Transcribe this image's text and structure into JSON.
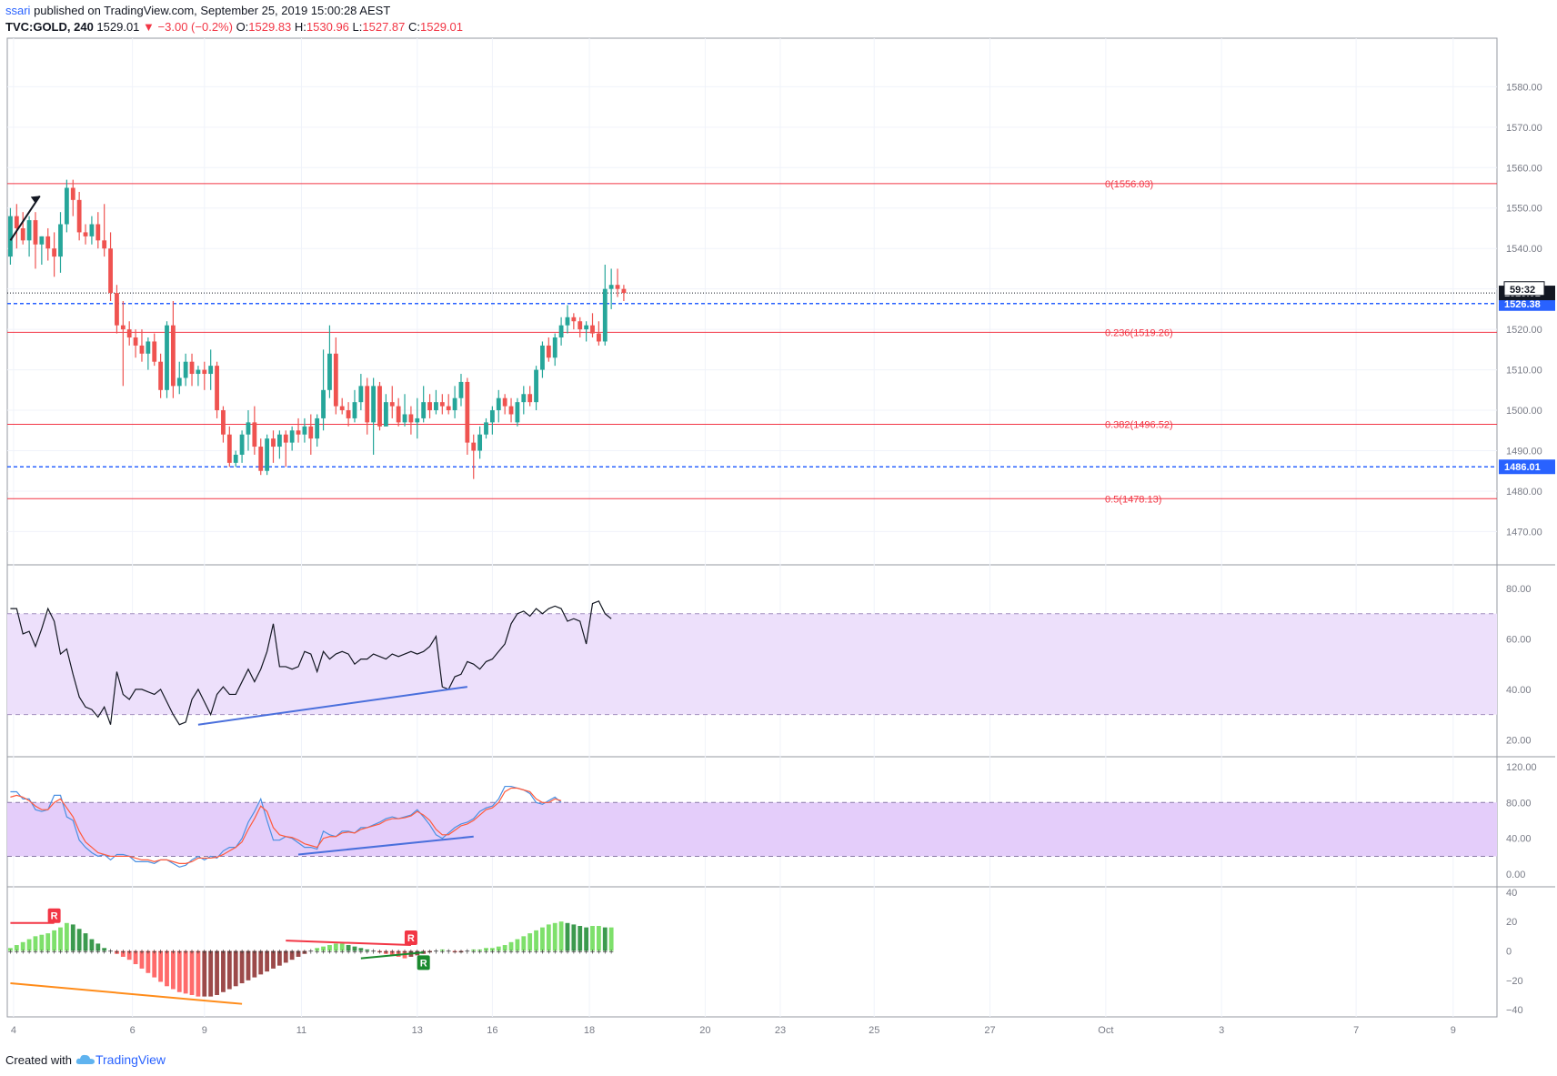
{
  "header": {
    "user": "ssari",
    "published": " published on TradingView.com, September 25, 2019 15:00:28 AEST",
    "symbol": "TVC:GOLD, 240",
    "last": "1529.01",
    "change": "−3.00 (−0.2%)",
    "o_label": "O:",
    "o_value": "1529.83",
    "h_label": "H:",
    "h_value": "1530.96",
    "l_label": "L:",
    "l_value": "1527.87",
    "c_label": "C:",
    "c_value": "1529.01"
  },
  "footer": {
    "created_with": "Created with",
    "brand": "TradingView"
  },
  "colors": {
    "up": "#26a69a",
    "down": "#ef5350",
    "fib": "#f23645",
    "support": "#2962ff",
    "rsi_band": "#ede0fb",
    "stoch_band": "#e4cdfa",
    "stoch_k": "#4a90e2",
    "stoch_d": "#ff5b3d"
  },
  "chart_data": [
    {
      "type": "candlestick",
      "name": "TVC:GOLD 240",
      "ylim": [
        1462,
        1592
      ],
      "y_ticks": [
        1470,
        1480,
        1490,
        1500,
        1510,
        1520,
        1530,
        1540,
        1550,
        1560,
        1570,
        1580
      ],
      "y_tick_labels": [
        "1470.00",
        "1480.00",
        "1490.00",
        "1500.00",
        "1510.00",
        "1520.00",
        "1530.00",
        "1540.00",
        "1550.00",
        "1560.00",
        "1570.00",
        "1580.00"
      ],
      "x_ticks": [
        {
          "label": "4",
          "bar": 0.5
        },
        {
          "label": "6",
          "bar": 19.5
        },
        {
          "label": "9",
          "bar": 31
        },
        {
          "label": "11",
          "bar": 46.5
        },
        {
          "label": "13",
          "bar": 65
        },
        {
          "label": "16",
          "bar": 77
        },
        {
          "label": "18",
          "bar": 92.5
        },
        {
          "label": "20",
          "bar": 111
        },
        {
          "label": "23",
          "bar": 123
        },
        {
          "label": "25",
          "bar": 138
        },
        {
          "label": "27",
          "bar": 156.5
        },
        {
          "label": "Oct",
          "bar": 175
        },
        {
          "label": "3",
          "bar": 193.5
        },
        {
          "label": "7",
          "bar": 215
        },
        {
          "label": "9",
          "bar": 230.5
        }
      ],
      "total_bars": 238,
      "fib_levels": [
        {
          "label": "0(1556.03)",
          "value": 1556.03
        },
        {
          "label": "0.236(1519.26)",
          "value": 1519.26
        },
        {
          "label": "0.382(1496.52)",
          "value": 1496.52
        },
        {
          "label": "0.5(1478.13)",
          "value": 1478.13
        }
      ],
      "support_lines": [
        {
          "value": 1526.38,
          "label": "1526.38",
          "countdown": "59:32"
        },
        {
          "value": 1486.01,
          "label": "1486.01"
        }
      ],
      "last_price": {
        "value": 1529.01,
        "label": "1529.01"
      },
      "candles": [
        [
          1538,
          1550,
          1536,
          1548
        ],
        [
          1548,
          1551,
          1540,
          1545
        ],
        [
          1545,
          1549,
          1541,
          1542
        ],
        [
          1542,
          1548,
          1538,
          1547
        ],
        [
          1547,
          1549,
          1535,
          1541
        ],
        [
          1541,
          1543,
          1536,
          1543
        ],
        [
          1543,
          1545,
          1537,
          1540
        ],
        [
          1540,
          1544,
          1533,
          1538
        ],
        [
          1538,
          1549,
          1534,
          1546
        ],
        [
          1546,
          1557,
          1544,
          1555
        ],
        [
          1555,
          1557,
          1548,
          1552
        ],
        [
          1552,
          1554,
          1542,
          1544
        ],
        [
          1544,
          1546,
          1541,
          1543
        ],
        [
          1543,
          1548,
          1541,
          1546
        ],
        [
          1546,
          1549,
          1540,
          1542
        ],
        [
          1542,
          1551,
          1538,
          1540
        ],
        [
          1540,
          1544,
          1527,
          1529
        ],
        [
          1529,
          1531,
          1519,
          1521
        ],
        [
          1521,
          1527,
          1506,
          1520
        ],
        [
          1520,
          1522,
          1516,
          1518
        ],
        [
          1518,
          1520,
          1513,
          1516
        ],
        [
          1516,
          1520,
          1512,
          1514
        ],
        [
          1514,
          1518,
          1510,
          1517
        ],
        [
          1517,
          1519,
          1511,
          1512
        ],
        [
          1512,
          1514,
          1503,
          1505
        ],
        [
          1505,
          1522,
          1503,
          1521
        ],
        [
          1521,
          1527,
          1503,
          1506
        ],
        [
          1506,
          1512,
          1504,
          1508
        ],
        [
          1508,
          1514,
          1506,
          1512
        ],
        [
          1512,
          1514,
          1506,
          1509
        ],
        [
          1509,
          1511,
          1506,
          1510
        ],
        [
          1510,
          1512,
          1505,
          1509
        ],
        [
          1509,
          1515,
          1505,
          1511
        ],
        [
          1511,
          1512,
          1498,
          1500
        ],
        [
          1500,
          1501,
          1492,
          1494
        ],
        [
          1494,
          1496,
          1486,
          1487
        ],
        [
          1487,
          1490,
          1486,
          1489
        ],
        [
          1489,
          1495,
          1487,
          1494
        ],
        [
          1494,
          1500,
          1490,
          1497
        ],
        [
          1497,
          1501,
          1489,
          1491
        ],
        [
          1491,
          1493,
          1484,
          1485
        ],
        [
          1485,
          1494,
          1484,
          1493
        ],
        [
          1493,
          1495,
          1487,
          1491
        ],
        [
          1491,
          1495,
          1488,
          1494
        ],
        [
          1494,
          1495,
          1486,
          1492
        ],
        [
          1492,
          1496,
          1490,
          1495
        ],
        [
          1495,
          1498,
          1492,
          1494
        ],
        [
          1494,
          1498,
          1492,
          1496
        ],
        [
          1496,
          1499,
          1489,
          1493
        ],
        [
          1493,
          1499,
          1491,
          1498
        ],
        [
          1498,
          1515,
          1495,
          1505
        ],
        [
          1505,
          1521,
          1503,
          1514
        ],
        [
          1514,
          1518,
          1499,
          1501
        ],
        [
          1501,
          1503,
          1499,
          1500
        ],
        [
          1500,
          1502,
          1496,
          1498
        ],
        [
          1498,
          1505,
          1497,
          1502
        ],
        [
          1502,
          1509,
          1500,
          1506
        ],
        [
          1506,
          1508,
          1494,
          1497
        ],
        [
          1497,
          1508,
          1489,
          1506
        ],
        [
          1506,
          1507,
          1495,
          1496
        ],
        [
          1496,
          1504,
          1496,
          1502
        ],
        [
          1502,
          1506,
          1498,
          1501
        ],
        [
          1501,
          1503,
          1496,
          1497
        ],
        [
          1497,
          1504,
          1496,
          1499
        ],
        [
          1499,
          1501,
          1494,
          1497
        ],
        [
          1497,
          1503,
          1493,
          1498
        ],
        [
          1498,
          1506,
          1497,
          1502
        ],
        [
          1502,
          1504,
          1498,
          1500
        ],
        [
          1500,
          1505,
          1499,
          1502
        ],
        [
          1502,
          1504,
          1499,
          1501
        ],
        [
          1501,
          1504,
          1499,
          1500
        ],
        [
          1500,
          1506,
          1498,
          1503
        ],
        [
          1503,
          1509,
          1501,
          1507
        ],
        [
          1507,
          1508,
          1489,
          1492
        ],
        [
          1492,
          1494,
          1483,
          1490
        ],
        [
          1490,
          1496,
          1488,
          1494
        ],
        [
          1494,
          1498,
          1493,
          1497
        ],
        [
          1497,
          1501,
          1494,
          1500
        ],
        [
          1500,
          1505,
          1497,
          1503
        ],
        [
          1503,
          1504,
          1499,
          1501
        ],
        [
          1501,
          1503,
          1497,
          1499
        ],
        [
          1497,
          1503,
          1496,
          1502
        ],
        [
          1502,
          1506,
          1499,
          1504
        ],
        [
          1504,
          1506,
          1501,
          1502
        ],
        [
          1502,
          1511,
          1500,
          1510
        ],
        [
          1510,
          1517,
          1508,
          1516
        ],
        [
          1516,
          1518,
          1512,
          1513
        ],
        [
          1513,
          1519,
          1511,
          1518
        ],
        [
          1518,
          1523,
          1516,
          1521
        ],
        [
          1521,
          1526,
          1519,
          1523
        ],
        [
          1523,
          1524,
          1520,
          1522
        ],
        [
          1522,
          1523,
          1518,
          1520
        ],
        [
          1520,
          1522,
          1517,
          1521
        ],
        [
          1521,
          1524,
          1518,
          1519
        ],
        [
          1519,
          1522,
          1516,
          1517
        ],
        [
          1517,
          1536,
          1516,
          1530
        ],
        [
          1530,
          1535,
          1525,
          1531
        ],
        [
          1531,
          1535,
          1528,
          1530
        ],
        [
          1530,
          1531,
          1527,
          1529
        ]
      ]
    },
    {
      "type": "line",
      "name": "RSI",
      "ylim": [
        14,
        89
      ],
      "y_ticks": [
        20,
        40,
        60,
        80
      ],
      "y_tick_labels": [
        "20.00",
        "40.00",
        "60.00",
        "80.00"
      ],
      "band": [
        30,
        70
      ],
      "values": [
        72,
        72,
        62,
        63,
        57,
        64,
        72,
        67,
        54,
        56,
        46,
        37,
        33,
        32,
        29,
        33,
        26,
        47,
        38,
        36,
        40,
        40,
        39,
        38,
        40,
        35,
        30,
        26,
        27,
        36,
        40,
        35,
        30,
        38,
        41,
        38,
        38,
        43,
        48,
        43,
        48,
        55,
        66,
        49,
        49,
        48,
        49,
        55,
        54,
        47,
        55,
        52,
        54,
        55,
        54,
        50,
        52,
        52,
        54,
        53,
        52,
        54,
        53,
        54,
        55,
        54,
        55,
        57,
        61,
        41,
        40,
        45,
        46,
        51,
        50,
        48,
        51,
        52,
        55,
        58,
        66,
        70,
        71,
        69,
        72,
        70,
        72,
        73,
        72,
        67,
        68,
        67,
        58,
        74,
        75,
        70,
        68
      ],
      "divergence_line": {
        "from": [
          30,
          26
        ],
        "to": [
          73,
          41
        ]
      }
    },
    {
      "type": "line",
      "name": "Stochastic",
      "ylim": [
        -12,
        130
      ],
      "y_ticks": [
        0,
        40,
        80,
        120
      ],
      "y_tick_labels": [
        "0.00",
        "40.00",
        "80.00",
        "120.00"
      ],
      "band": [
        20,
        80
      ],
      "series": [
        {
          "values": [
            92,
            92,
            84,
            84,
            72,
            70,
            72,
            88,
            88,
            64,
            60,
            38,
            30,
            24,
            20,
            22,
            16,
            22,
            22,
            20,
            14,
            14,
            14,
            12,
            16,
            16,
            12,
            8,
            10,
            16,
            20,
            16,
            20,
            18,
            26,
            30,
            30,
            40,
            58,
            70,
            84,
            60,
            38,
            38,
            42,
            40,
            35,
            30,
            30,
            28,
            48,
            44,
            42,
            48,
            48,
            46,
            52,
            52,
            55,
            58,
            62,
            64,
            62,
            64,
            66,
            72,
            64,
            55,
            44,
            40,
            46,
            52,
            56,
            58,
            62,
            70,
            74,
            76,
            84,
            98,
            98,
            96,
            94,
            90,
            80,
            78,
            82,
            86,
            80
          ],
          "color_key": "stoch_k"
        },
        {
          "values": [
            86,
            88,
            86,
            82,
            76,
            72,
            72,
            80,
            84,
            74,
            64,
            48,
            36,
            30,
            24,
            22,
            20,
            20,
            20,
            20,
            18,
            16,
            16,
            14,
            16,
            16,
            14,
            12,
            12,
            14,
            18,
            18,
            18,
            19,
            22,
            26,
            30,
            36,
            50,
            62,
            76,
            70,
            52,
            44,
            42,
            41,
            38,
            34,
            32,
            30,
            40,
            42,
            42,
            46,
            47,
            46,
            50,
            52,
            54,
            56,
            60,
            62,
            62,
            63,
            65,
            70,
            66,
            60,
            50,
            44,
            44,
            49,
            54,
            56,
            60,
            66,
            72,
            74,
            80,
            92,
            96,
            96,
            94,
            92,
            84,
            80,
            80,
            84,
            82
          ],
          "color_key": "stoch_d"
        }
      ],
      "divergence_line": {
        "from": [
          46,
          22
        ],
        "to": [
          74,
          42
        ]
      }
    },
    {
      "type": "bar",
      "name": "Momentum histogram",
      "ylim": [
        -43,
        43
      ],
      "y_ticks": [
        -40,
        -20,
        0,
        20,
        40
      ],
      "y_tick_labels": [
        "−40",
        "−20",
        "0",
        "20",
        "40"
      ],
      "values": [
        2,
        4,
        6,
        8,
        10,
        11,
        12,
        14,
        16,
        19,
        18,
        15,
        12,
        8,
        5,
        2,
        0,
        -2,
        -4,
        -6,
        -9,
        -12,
        -15,
        -18,
        -21,
        -24,
        -26,
        -28,
        -29,
        -30,
        -31,
        -31,
        -31,
        -30,
        -28,
        -26,
        -24,
        -22,
        -20,
        -18,
        -16,
        -14,
        -12,
        -10,
        -8,
        -6,
        -4,
        -2,
        0,
        2,
        3,
        4,
        5,
        5,
        4,
        3,
        2,
        1,
        0,
        -1,
        -2,
        -3,
        -4,
        -5,
        -4,
        -3,
        -2,
        -1,
        0,
        1,
        0,
        -1,
        -1,
        0,
        1,
        1,
        2,
        2,
        3,
        4,
        6,
        8,
        10,
        12,
        14,
        16,
        18,
        19,
        20,
        19,
        18,
        17,
        16,
        17,
        17,
        16,
        16
      ],
      "annotations": [
        {
          "label": "R",
          "bar": 7,
          "value": 24,
          "color": "#f23645"
        },
        {
          "label": "R",
          "bar": 64,
          "value": 9,
          "color": "#f23645"
        },
        {
          "label": "R",
          "bar": 66,
          "value": -8,
          "color": "#1b8a2e"
        }
      ],
      "trend_lines": [
        {
          "from": [
            0,
            19
          ],
          "to": [
            7,
            19
          ],
          "color": "#f23645"
        },
        {
          "from": [
            0,
            -22
          ],
          "to": [
            37,
            -36
          ],
          "color": "#ff8c1a"
        },
        {
          "from": [
            44,
            7
          ],
          "to": [
            64,
            4
          ],
          "color": "#f23645"
        },
        {
          "from": [
            56,
            -5
          ],
          "to": [
            66,
            -1
          ],
          "color": "#1b8a2e"
        }
      ]
    }
  ]
}
